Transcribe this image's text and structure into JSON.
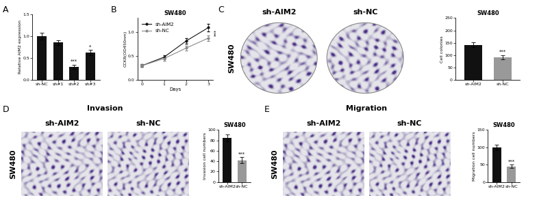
{
  "panels": [
    "A",
    "B",
    "C",
    "D",
    "E"
  ],
  "chart_data": [
    {
      "panel": "A",
      "type": "bar",
      "y_label": "Relative AIM2 expression",
      "categories": [
        "sh-NC",
        "sh#1",
        "sh#2",
        "sh#3"
      ],
      "values": [
        1.0,
        0.85,
        0.3,
        0.62
      ],
      "error": [
        0.08,
        0.06,
        0.05,
        0.06
      ],
      "color": "#111111",
      "ylim": [
        0,
        1.5
      ],
      "yticks": [
        {
          "value": 0,
          "label": "0.0"
        },
        {
          "value": 0.5,
          "label": "0.5"
        },
        {
          "value": 1.0,
          "label": "1.0"
        },
        {
          "value": 1.5,
          "label": "1.5"
        }
      ],
      "annotations": [
        {
          "category": "sh#2",
          "text": "***"
        },
        {
          "category": "sh#3",
          "text": "*"
        }
      ]
    },
    {
      "panel": "B",
      "type": "line",
      "title": "SW480",
      "x_label": "Days",
      "y_label": "CCK8(OD450nm)",
      "x": [
        0,
        1,
        2,
        3
      ],
      "series": [
        {
          "name": "sh-AIM2",
          "color": "#111111",
          "marker": "o",
          "values": [
            0.3,
            0.48,
            0.82,
            1.1
          ],
          "error": [
            0.03,
            0.04,
            0.06,
            0.08
          ]
        },
        {
          "name": "sh-NC",
          "color": "#888888",
          "marker": "o",
          "values": [
            0.3,
            0.45,
            0.67,
            0.88
          ],
          "error": [
            0.03,
            0.04,
            0.05,
            0.06
          ]
        }
      ],
      "xlim": [
        -0.2,
        3.2
      ],
      "xticks": [
        0,
        1,
        2,
        3
      ],
      "ylim": [
        0,
        1.3
      ],
      "yticks": [
        {
          "value": 0,
          "label": "0.0"
        },
        {
          "value": 0.5,
          "label": "0.5"
        },
        {
          "value": 1.0,
          "label": "1.0"
        }
      ],
      "legend": "upper left",
      "annotations": [
        {
          "x": 3,
          "text": "***"
        }
      ]
    },
    {
      "panel": "C",
      "type": "bar",
      "title": "SW480",
      "y_label": "Cell colonies",
      "categories": [
        "sh-AIM2",
        "sh-NC"
      ],
      "values": [
        142,
        92
      ],
      "error": [
        10,
        8
      ],
      "colors": [
        "#111111",
        "#999999"
      ],
      "ylim": [
        0,
        250
      ],
      "yticks": [
        0,
        50,
        100,
        150,
        200,
        250
      ],
      "annotations": [
        {
          "category": "sh-NC",
          "text": "***"
        }
      ]
    },
    {
      "panel": "D",
      "type": "bar",
      "title": "SW480",
      "y_label": "Invasion cell numbers",
      "categories": [
        "sh-AIM2",
        "sh-NC"
      ],
      "values": [
        85,
        42
      ],
      "error": [
        7,
        6
      ],
      "colors": [
        "#111111",
        "#999999"
      ],
      "ylim": [
        0,
        100
      ],
      "yticks": [
        0,
        20,
        40,
        60,
        80,
        100
      ],
      "annotations": [
        {
          "category": "sh-NC",
          "text": "***"
        }
      ]
    },
    {
      "panel": "E",
      "type": "bar",
      "title": "SW480",
      "y_label": "Migration cell numbers",
      "categories": [
        "sh-AIM2",
        "sh-NC"
      ],
      "values": [
        100,
        45
      ],
      "error": [
        8,
        5
      ],
      "colors": [
        "#111111",
        "#999999"
      ],
      "ylim": [
        0,
        150
      ],
      "yticks": [
        0,
        50,
        100,
        150
      ],
      "annotations": [
        {
          "category": "sh-NC",
          "text": "***"
        }
      ]
    }
  ],
  "images": [
    {
      "panel": "C",
      "kind": "plate",
      "side_label": "SW480",
      "labels": [
        "sh-AIM2",
        "sh-NC"
      ]
    },
    {
      "panel": "D",
      "kind": "transwell",
      "header": "Invasion",
      "side_label": "SW480",
      "labels": [
        "sh-AIM2",
        "sh-NC"
      ]
    },
    {
      "panel": "E",
      "kind": "transwell",
      "header": "Migration",
      "side_label": "SW480",
      "labels": [
        "sh-AIM2",
        "sh-NC"
      ]
    }
  ]
}
